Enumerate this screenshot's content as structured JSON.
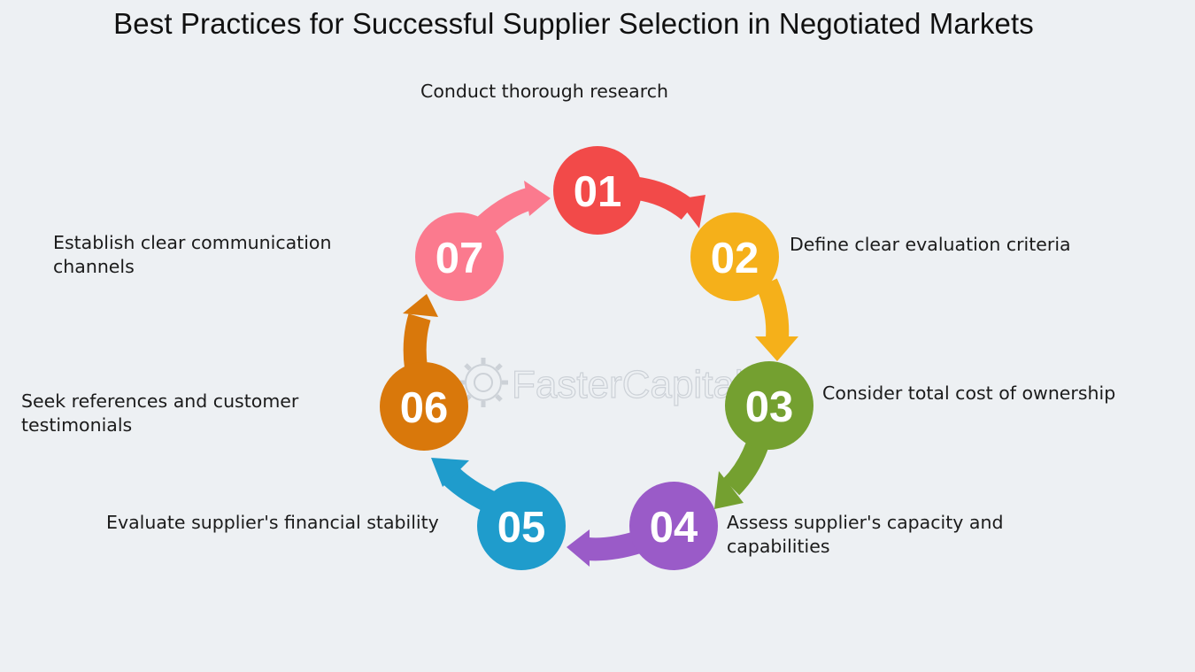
{
  "title": "Best Practices for Successful Supplier Selection in Negotiated Markets",
  "watermark": "FasterCapital",
  "steps": [
    {
      "number": "01",
      "lines": [
        "Conduct thorough research"
      ],
      "color": "#f24a49"
    },
    {
      "number": "02",
      "lines": [
        "Define clear evaluation criteria"
      ],
      "color": "#f5b01a"
    },
    {
      "number": "03",
      "lines": [
        "Consider total cost of ownership"
      ],
      "color": "#74a030"
    },
    {
      "number": "04",
      "lines": [
        "Assess supplier's capacity and",
        "capabilities"
      ],
      "color": "#9a5bc8"
    },
    {
      "number": "05",
      "lines": [
        "Evaluate supplier's financial stability"
      ],
      "color": "#1f9ccc"
    },
    {
      "number": "06",
      "lines": [
        "Seek references and customer",
        "testimonials"
      ],
      "color": "#d9780b"
    },
    {
      "number": "07",
      "lines": [
        "Establish clear communication",
        "channels"
      ],
      "color": "#fb7a8e"
    }
  ]
}
